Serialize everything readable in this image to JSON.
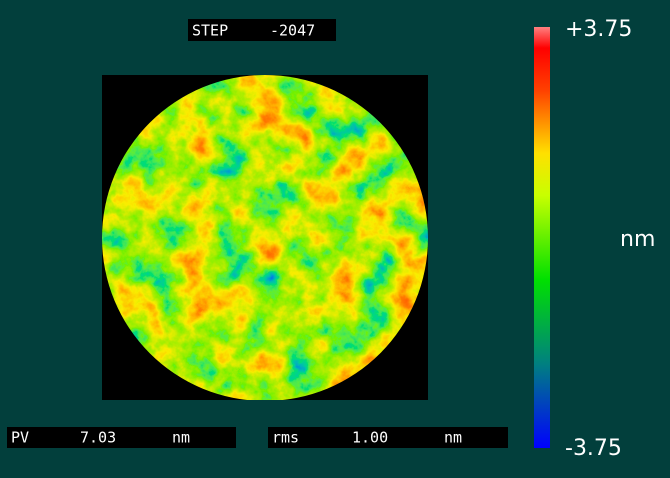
{
  "header": {
    "label": "STEP",
    "value": "-2047"
  },
  "colorbar": {
    "max": "+3.75",
    "min": "-3.75",
    "unit": "nm"
  },
  "stats": [
    {
      "label": "PV",
      "value": "7.03",
      "unit": "nm"
    },
    {
      "label": "rms",
      "value": "1.00",
      "unit": "nm"
    }
  ]
}
